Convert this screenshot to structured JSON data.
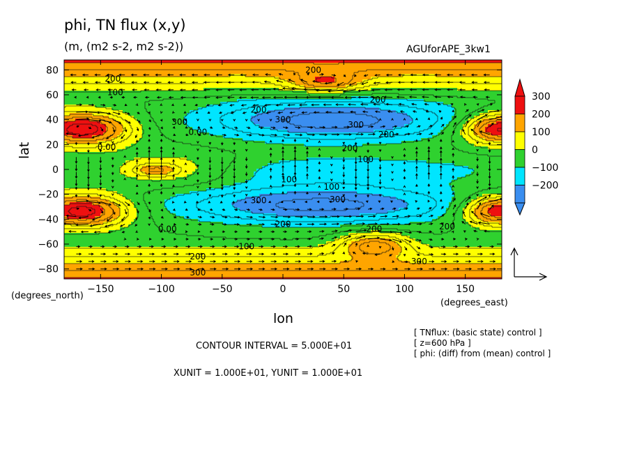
{
  "chart_data": {
    "type": "heatmap",
    "title": "phi, TN flux (x,y)",
    "subtitle": "(m, (m2 s-2, m2 s-2))",
    "dataset_label": "AGUforAPE_3kw1",
    "xlabel": "lon",
    "ylabel": "lat",
    "x_unit_label": "(degrees_east)",
    "y_unit_label": "(degrees_north)",
    "xlim": [
      -180,
      180
    ],
    "ylim": [
      -88,
      88
    ],
    "x_ticks": [
      -150,
      -100,
      -50,
      0,
      50,
      100,
      150
    ],
    "y_ticks": [
      80,
      60,
      40,
      20,
      0,
      -20,
      -40,
      -60,
      -80
    ],
    "x_tick_labels": [
      "−150",
      "−100",
      "−50",
      "0",
      "50",
      "100",
      "150"
    ],
    "y_tick_labels": [
      "80",
      "60",
      "40",
      "20",
      "0",
      "−20",
      "−40",
      "−60",
      "−80"
    ],
    "colorbar": {
      "levels": [
        -200,
        -100,
        0,
        100,
        200,
        300
      ],
      "labels": [
        "300",
        "200",
        "100",
        "0",
        "−100",
        "−200"
      ],
      "colors": [
        "#3a8ef0",
        "#00e5ff",
        "#2fd12f",
        "#ffff00",
        "#ffa500",
        "#ee1010"
      ]
    },
    "contour_labels": [
      {
        "text": "200",
        "lon": -140,
        "lat": 73
      },
      {
        "text": "100",
        "lon": -138,
        "lat": 62
      },
      {
        "text": "200",
        "lon": 25,
        "lat": 80
      },
      {
        "text": "200",
        "lon": 78,
        "lat": 56
      },
      {
        "text": "200",
        "lon": -20,
        "lat": 48
      },
      {
        "text": "300",
        "lon": 0,
        "lat": 40
      },
      {
        "text": "300",
        "lon": 60,
        "lat": 36
      },
      {
        "text": "200",
        "lon": 55,
        "lat": 17
      },
      {
        "text": "100",
        "lon": 68,
        "lat": 8
      },
      {
        "text": "0.00",
        "lon": -145,
        "lat": 18
      },
      {
        "text": "0.00",
        "lon": -70,
        "lat": 30
      },
      {
        "text": "300",
        "lon": -85,
        "lat": 38
      },
      {
        "text": "100",
        "lon": 5,
        "lat": -8
      },
      {
        "text": "100",
        "lon": 40,
        "lat": -14
      },
      {
        "text": "300",
        "lon": 45,
        "lat": -24
      },
      {
        "text": "300",
        "lon": -20,
        "lat": -25
      },
      {
        "text": "200",
        "lon": 0,
        "lat": -44
      },
      {
        "text": "200",
        "lon": 75,
        "lat": -48
      },
      {
        "text": "100",
        "lon": -30,
        "lat": -62
      },
      {
        "text": "0.00",
        "lon": -95,
        "lat": -48
      },
      {
        "text": "200",
        "lon": -70,
        "lat": -70
      },
      {
        "text": "300",
        "lon": -70,
        "lat": -83
      },
      {
        "text": "300",
        "lon": 112,
        "lat": -74
      },
      {
        "text": "200",
        "lon": 135,
        "lat": -46
      },
      {
        "text": "200",
        "lon": 85,
        "lat": 28
      }
    ],
    "vector_scale": {
      "x_unit": 10.0,
      "y_unit": 10.0
    }
  },
  "contour_interval_text": "CONTOUR INTERVAL = 5.000E+01",
  "units_text": "XUNIT = 1.000E+01, YUNIT = 1.000E+01",
  "notes": [
    "[ TNflux: (basic state) control ]",
    "[ z=600 hPa ]",
    "[ phi: (diff) from (mean) control ]"
  ]
}
